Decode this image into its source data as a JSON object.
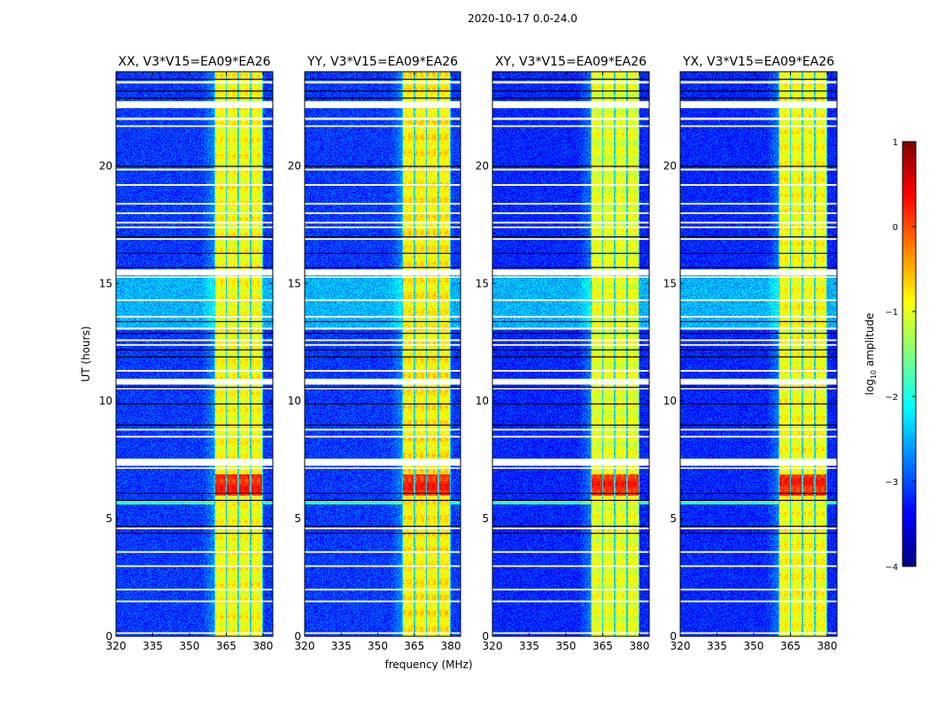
{
  "suptitle": "2020-10-17 0.0-24.0",
  "chart_data": {
    "type": "heatmap",
    "title": "2020-10-17 0.0-24.0",
    "xlabel": "frequency (MHz)",
    "ylabel": "UT (hours)",
    "xlim": [
      320,
      384
    ],
    "ylim": [
      0,
      24
    ],
    "xticks": [
      "320",
      "335",
      "350",
      "365",
      "380"
    ],
    "yticks": [
      "0",
      "5",
      "10",
      "15",
      "20"
    ],
    "panels": [
      {
        "title": "XX, V3*V15=EA09*EA26",
        "band_level": -0.9,
        "bg_level": -3.1
      },
      {
        "title": "YY, V3*V15=EA09*EA26",
        "band_level": -0.8,
        "bg_level": -3.1
      },
      {
        "title": "XY, V3*V15=EA09*EA26",
        "band_level": -1.0,
        "bg_level": -3.2
      },
      {
        "title": "YX, V3*V15=EA09*EA26",
        "band_level": -0.9,
        "bg_level": -3.2
      }
    ],
    "spectral_windows_mhz": [
      [
        360,
        365
      ],
      [
        365,
        370
      ],
      [
        370,
        375
      ],
      [
        375,
        380
      ]
    ],
    "flagged_white_hours": [
      [
        23.5,
        23.6
      ],
      [
        22.45,
        22.75
      ],
      [
        21.95,
        22.05
      ],
      [
        21.65,
        21.72
      ],
      [
        19.8,
        19.88
      ],
      [
        19.15,
        19.22
      ],
      [
        18.35,
        18.42
      ],
      [
        17.95,
        18.02
      ],
      [
        17.55,
        17.62
      ],
      [
        17.35,
        17.42
      ],
      [
        16.85,
        16.92
      ],
      [
        15.35,
        15.6
      ],
      [
        15.25,
        15.3
      ],
      [
        14.25,
        14.32
      ],
      [
        13.55,
        13.62
      ],
      [
        13.05,
        13.12
      ],
      [
        12.55,
        12.62
      ],
      [
        12.35,
        12.42
      ],
      [
        11.25,
        11.32
      ],
      [
        10.7,
        10.95
      ],
      [
        10.5,
        10.57
      ],
      [
        8.75,
        8.82
      ],
      [
        8.45,
        8.52
      ],
      [
        7.25,
        7.55
      ],
      [
        7.12,
        7.18
      ],
      [
        4.55,
        4.62
      ],
      [
        3.55,
        3.62
      ],
      [
        2.95,
        3.02
      ],
      [
        1.95,
        2.02
      ],
      [
        1.45,
        1.52
      ],
      [
        0.1,
        0.17
      ]
    ],
    "flagged_black_hours": [
      23.7,
      23.2,
      22.9,
      20.0,
      17.0,
      16.3,
      15.7,
      13.4,
      12.9,
      12.2,
      11.9,
      10.6,
      9.9,
      9.0,
      6.1,
      5.8,
      4.7,
      4.4
    ],
    "bright_hours": [
      [
        13.0,
        15.5,
        -2.5
      ],
      [
        5.6,
        5.75,
        -1.9
      ],
      [
        6.0,
        6.9,
        0.2
      ]
    ],
    "colorbar": {
      "label": "log10 amplitude",
      "label_main": "log",
      "label_sub": "10",
      "label_rest": " amplitude",
      "range": [
        -4,
        1
      ],
      "ticks": [
        "1",
        "0",
        "−1",
        "−2",
        "−3",
        "−4"
      ],
      "colormap": "jet"
    }
  }
}
